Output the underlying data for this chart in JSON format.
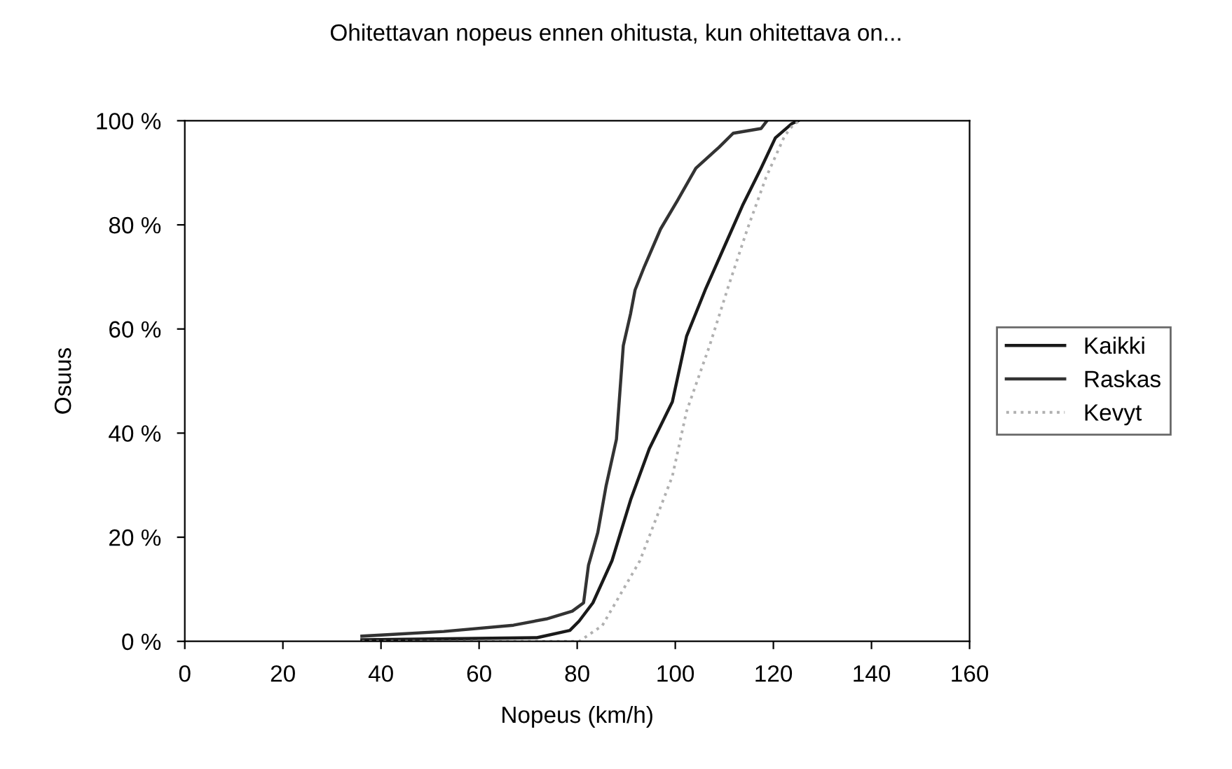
{
  "chart_data": {
    "type": "line",
    "title": "Ohitettavan nopeus ennen ohitusta, kun ohitettava on...",
    "xlabel": "Nopeus (km/h)",
    "ylabel": "Osuus",
    "xlim": [
      0,
      160
    ],
    "xticks": [
      0,
      20,
      40,
      60,
      80,
      100,
      120,
      140,
      160
    ],
    "ylim": [
      0,
      100
    ],
    "yticks": [
      {
        "value": 0,
        "label": "0 %"
      },
      {
        "value": 20,
        "label": "20 %"
      },
      {
        "value": 40,
        "label": "40 %"
      },
      {
        "value": 60,
        "label": "60 %"
      },
      {
        "value": 80,
        "label": "80 %"
      },
      {
        "value": 100,
        "label": "100 %"
      }
    ],
    "grid": false,
    "legend": "right",
    "marker": "none",
    "series": [
      {
        "name": "Kaikki",
        "color": "#1a1a1a",
        "line_style": "solid",
        "x": [
          36.1,
          71.8,
          78.5,
          80.4,
          83.2,
          87.1,
          90.9,
          94.7,
          99.4,
          102.3,
          106.1,
          109.9,
          113.7,
          117.5,
          120.4,
          123.7,
          125
        ],
        "values": [
          0.3,
          0.7,
          2.1,
          3.9,
          7.4,
          15.5,
          27.2,
          37,
          46,
          58.6,
          67.5,
          75.6,
          83.7,
          90.9,
          96.7,
          99.4,
          100
        ]
      },
      {
        "name": "Raskas",
        "color": "#333333",
        "line_style": "solid",
        "x": [
          36.1,
          52.8,
          67,
          73.7,
          79,
          81.3,
          82.3,
          84.2,
          85.9,
          88,
          88.7,
          89.4,
          90.9,
          91.8,
          93.7,
          97,
          100.4,
          104.2,
          108.9,
          111.8,
          117.5,
          118.7
        ],
        "values": [
          1,
          1.9,
          3.1,
          4.3,
          5.8,
          7.4,
          14.6,
          20.9,
          29.9,
          38.8,
          47.8,
          56.8,
          63,
          67.5,
          72,
          79.2,
          84.6,
          90.9,
          94.9,
          97.6,
          98.5,
          100
        ]
      },
      {
        "name": "Kevyt",
        "color": "#b0b0b0",
        "line_style": "dotted",
        "x": [
          36.1,
          80.4,
          85.1,
          92.8,
          99.4,
          102.3,
          107,
          110.9,
          114.7,
          118.5,
          122.3,
          124.2,
          125.5
        ],
        "values": [
          0,
          0,
          3,
          15.5,
          31.7,
          44.2,
          56.8,
          68.4,
          79.2,
          89.1,
          97.1,
          99.4,
          100
        ]
      }
    ]
  }
}
